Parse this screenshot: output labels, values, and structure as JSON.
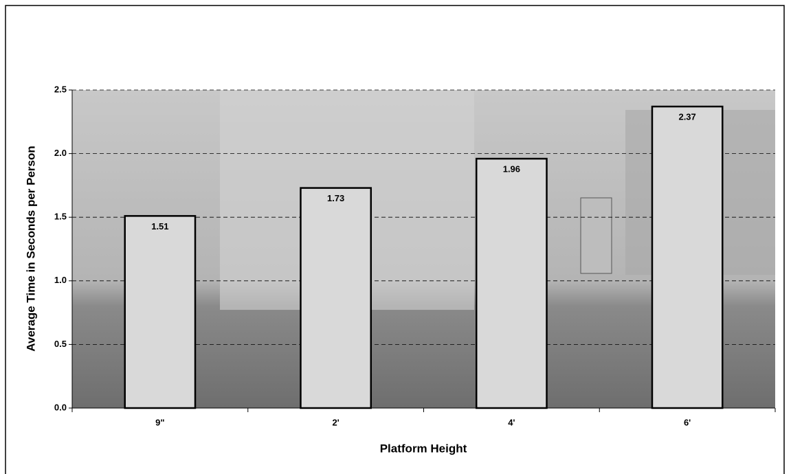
{
  "chart_data": {
    "type": "bar",
    "x_label": "Platform Height",
    "y_label": "Average Time in Seconds per Person",
    "categories": [
      "9\"",
      "2'",
      "4'",
      "6'"
    ],
    "values": [
      1.51,
      1.73,
      1.96,
      2.37
    ],
    "color": "#d9d9d9",
    "ylim": [
      0,
      2.5
    ],
    "yticks": [
      {
        "value": 0,
        "label": "0.0"
      },
      0.5,
      {
        "value": 1,
        "label": "1.0"
      },
      1.5,
      {
        "value": 2,
        "label": "2.0"
      },
      2.5
    ],
    "grid": true
  }
}
